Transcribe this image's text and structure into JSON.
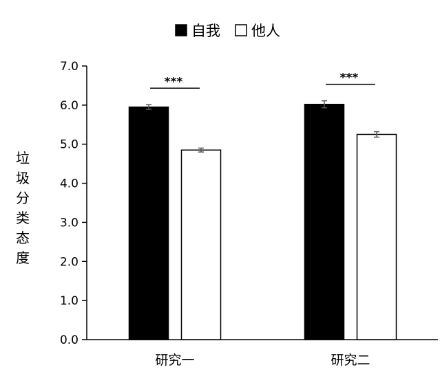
{
  "chart_data": {
    "type": "bar",
    "categories": [
      "研究一",
      "研究二"
    ],
    "series": [
      {
        "name": "自我",
        "values": [
          5.95,
          6.02
        ],
        "errors": [
          0.06,
          0.09
        ],
        "color": "#000000"
      },
      {
        "name": "他人",
        "values": [
          4.85,
          5.25
        ],
        "errors": [
          0.05,
          0.07
        ],
        "color": "#ffffff"
      }
    ],
    "ylabel": "垃圾分类态度",
    "ylim": [
      0,
      7
    ],
    "yticks": [
      "0.0",
      "1.0",
      "2.0",
      "3.0",
      "4.0",
      "5.0",
      "6.0",
      "7.0"
    ],
    "significance": [
      "***",
      "***"
    ],
    "legend_position": "top-center",
    "grid": false
  }
}
